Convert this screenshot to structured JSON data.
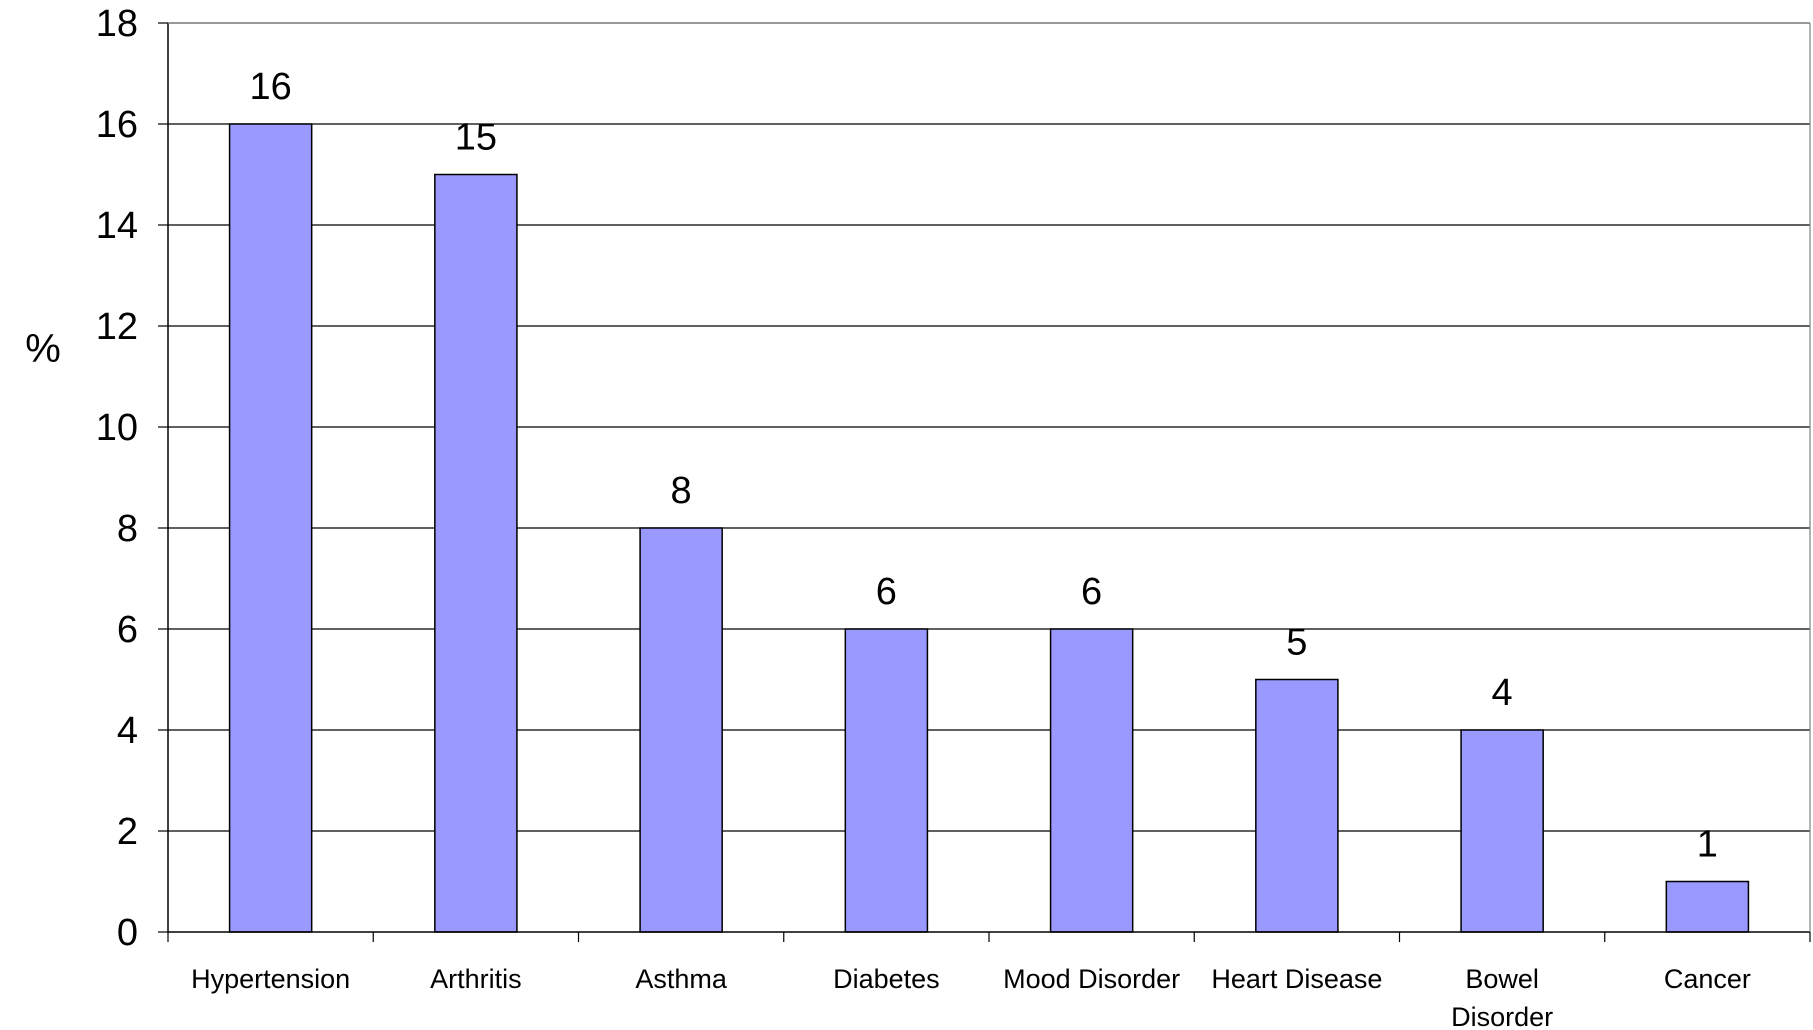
{
  "chart_data": {
    "type": "bar",
    "title": "",
    "xlabel": "",
    "ylabel": "%",
    "ylim": [
      0,
      18
    ],
    "yticks": [
      "0",
      "2",
      "4",
      "6",
      "8",
      "10",
      "12",
      "14",
      "16",
      "18"
    ],
    "categories": [
      [
        "Hypertension"
      ],
      [
        "Arthritis"
      ],
      [
        "Asthma"
      ],
      [
        "Diabetes"
      ],
      [
        "Mood Disorder"
      ],
      [
        "Heart Disease"
      ],
      [
        "Bowel",
        "Disorder"
      ],
      [
        "Cancer"
      ]
    ],
    "values": [
      16,
      15,
      8,
      6,
      6,
      5,
      4,
      1
    ],
    "data_labels": [
      "16",
      "15",
      "8",
      "6",
      "6",
      "5",
      "4",
      "1"
    ],
    "grid": true,
    "legend": "none",
    "colors": {
      "bar_fill": "#9999ff",
      "bar_stroke": "#000000",
      "grid": "#000000",
      "background": "#ffffff"
    }
  }
}
